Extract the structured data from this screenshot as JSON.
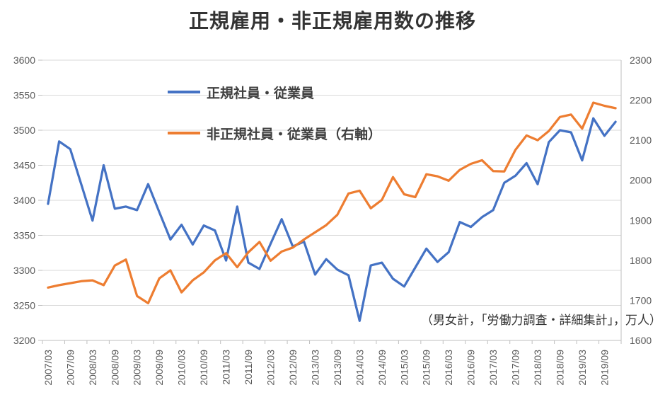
{
  "title": "正規雇用・非正規雇用数の推移",
  "source_note": "（男女計，「労働力調査・詳細集計」，万人）",
  "colors": {
    "regular_line": "#4472C4",
    "nonregular_line": "#ED7D31",
    "gridline": "#D9D9D9",
    "axis_line": "#BFBFBF",
    "tick_label": "#595959",
    "title_text": "#333333"
  },
  "chart_data": {
    "type": "line",
    "title": "正規雇用・非正規雇用数の推移",
    "annotation": "（男女計，「労働力調査・詳細集計」，万人）",
    "grid": true,
    "legend_position": "inside-top-left",
    "x_label_every": 2,
    "x": [
      "2007/03",
      "2007/06",
      "2007/09",
      "2007/12",
      "2008/03",
      "2008/06",
      "2008/09",
      "2008/12",
      "2009/03",
      "2009/06",
      "2009/09",
      "2009/12",
      "2010/03",
      "2010/06",
      "2010/09",
      "2010/12",
      "2011/03",
      "2011/06",
      "2011/09",
      "2011/12",
      "2012/03",
      "2012/06",
      "2012/09",
      "2012/12",
      "2013/03",
      "2013/06",
      "2013/09",
      "2013/12",
      "2014/03",
      "2014/06",
      "2014/09",
      "2014/12",
      "2015/03",
      "2015/06",
      "2015/09",
      "2015/12",
      "2016/03",
      "2016/06",
      "2016/09",
      "2016/12",
      "2017/03",
      "2017/06",
      "2017/09",
      "2017/12",
      "2018/03",
      "2018/06",
      "2018/09",
      "2018/12",
      "2019/03",
      "2019/06",
      "2019/09",
      "2019/12"
    ],
    "left_axis": {
      "min": 3200,
      "max": 3600,
      "step": 50
    },
    "right_axis": {
      "min": 1600,
      "max": 2300,
      "step": 100
    },
    "series": [
      {
        "id": "series-line-regular",
        "name": "正規社員・従業員",
        "axis": "left",
        "color": "#4472C4",
        "values": [
          3395,
          3484,
          3473,
          3422,
          3371,
          3450,
          3388,
          3391,
          3386,
          3423,
          3383,
          3344,
          3365,
          3337,
          3364,
          3357,
          3314,
          3391,
          3311,
          3302,
          3338,
          3373,
          3334,
          3341,
          3294,
          3316,
          3301,
          3293,
          3228,
          3307,
          3311,
          3288,
          3277,
          3304,
          3331,
          3312,
          3326,
          3369,
          3362,
          3376,
          3386,
          3425,
          3435,
          3453,
          3423,
          3483,
          3500,
          3497,
          3457,
          3517,
          3492,
          3512
        ]
      },
      {
        "id": "series-line-nonregular",
        "name": "非正規社員・従業員（右軸）",
        "axis": "right",
        "color": "#ED7D31",
        "values": [
          1732,
          1738,
          1743,
          1748,
          1750,
          1738,
          1787,
          1802,
          1711,
          1693,
          1755,
          1775,
          1720,
          1750,
          1770,
          1800,
          1818,
          1783,
          1820,
          1846,
          1799,
          1822,
          1832,
          1852,
          1870,
          1888,
          1914,
          1967,
          1974,
          1930,
          1951,
          2008,
          1965,
          1958,
          2015,
          2010,
          1999,
          2026,
          2041,
          2050,
          2023,
          2022,
          2076,
          2112,
          2100,
          2123,
          2158,
          2164,
          2129,
          2194,
          2186,
          2180
        ]
      }
    ]
  }
}
